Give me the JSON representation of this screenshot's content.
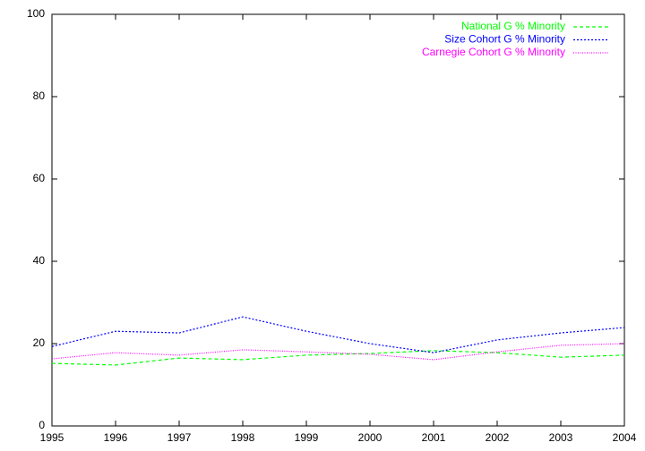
{
  "chart_data": {
    "type": "line",
    "x": [
      1995,
      1996,
      1997,
      1998,
      1999,
      2000,
      2001,
      2002,
      2003,
      2004
    ],
    "series": [
      {
        "name": "National G % Minority",
        "color": "#00ff00",
        "values": [
          15.2,
          14.8,
          16.5,
          16.1,
          17.2,
          17.6,
          18.3,
          17.8,
          16.7,
          17.2
        ]
      },
      {
        "name": "Size Cohort G % Minority",
        "color": "#0000ff",
        "values": [
          19.3,
          23.0,
          22.6,
          26.5,
          23.0,
          20.0,
          17.8,
          20.9,
          22.6,
          23.9
        ]
      },
      {
        "name": "Carnegie Cohort G % Minority",
        "color": "#ff00ff",
        "values": [
          16.3,
          17.8,
          17.2,
          18.5,
          18.0,
          17.4,
          16.1,
          18.0,
          19.6,
          20.0
        ]
      }
    ],
    "xlim": [
      1995,
      2004
    ],
    "xticks": [
      1995,
      1996,
      1997,
      1998,
      1999,
      2000,
      2001,
      2002,
      2003,
      2004
    ],
    "ylim": [
      0,
      100
    ],
    "yticks": [
      0,
      20,
      40,
      60,
      80,
      100
    ],
    "legend": "top-right"
  }
}
